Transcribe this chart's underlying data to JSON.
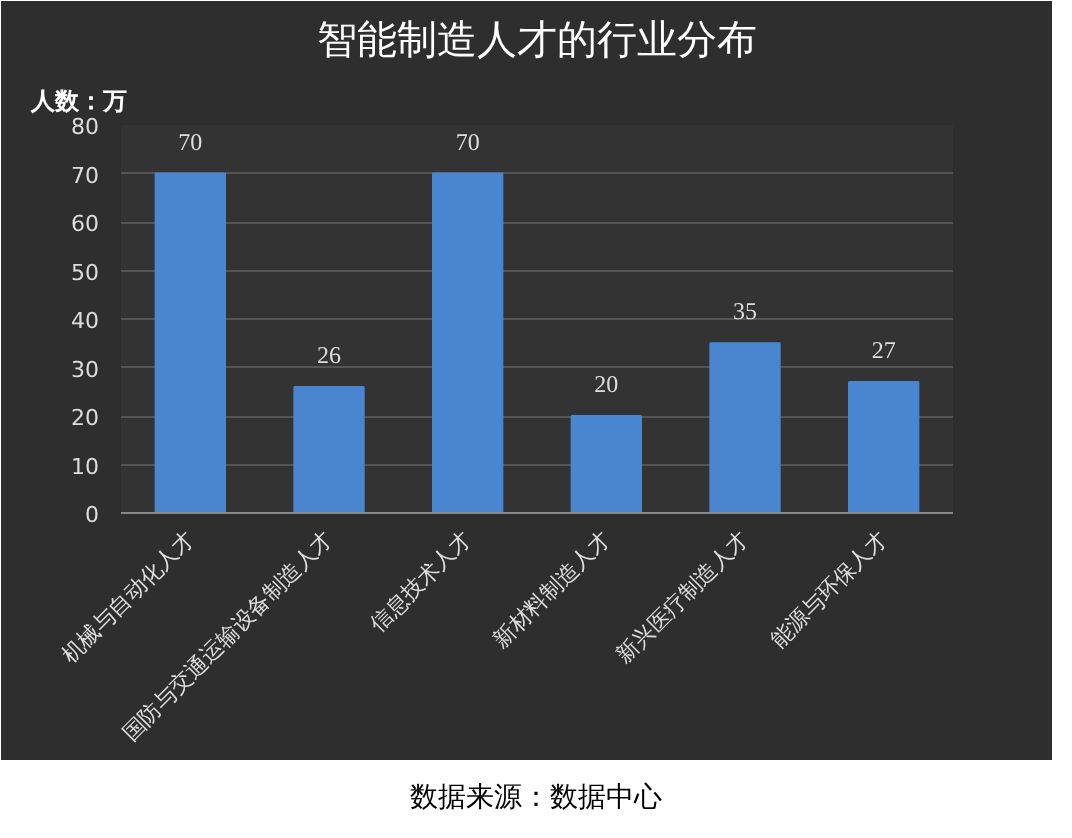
{
  "chart_data": {
    "type": "bar",
    "title": "智能制造人才的行业分布",
    "ylabel": "人数：万",
    "categories": [
      "机械与自动化人才",
      "国防与交通运输设备制造人才",
      "信息技术人才",
      "新材料制造人才",
      "新兴医疗制造人才",
      "能源与环保人才"
    ],
    "values": [
      70,
      26,
      70,
      20,
      35,
      27
    ],
    "color": "#4a86d0",
    "ylim": [
      0,
      80
    ],
    "yticks": [
      0,
      10,
      20,
      30,
      40,
      50,
      60,
      70,
      80
    ],
    "grid": "y",
    "data_labels": true,
    "annotations": [
      "数据来源：数据中心"
    ]
  }
}
